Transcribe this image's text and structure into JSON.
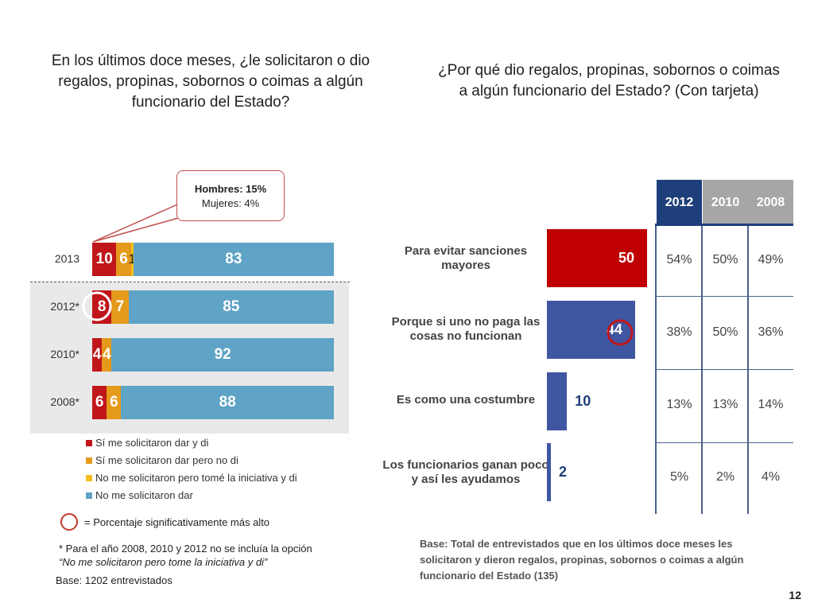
{
  "left_title": "En los últimos doce meses, ¿le solicitaron o dio regalos, propinas, sobornos o coimas a algún funcionario del Estado?",
  "right_title": "¿Por qué dio regalos, propinas, sobornos o coimas a algún funcionario del Estado? (Con tarjeta)",
  "callout": {
    "line1": "Hombres: 15%",
    "line2": "Mujeres: 4%"
  },
  "colors": {
    "dark_red": "#c0161b",
    "orange": "#e59a1c",
    "yellow": "#f4c020",
    "teal": "#5fa3c6",
    "navy": "#1f3f7a",
    "grey": "#a6a6a6",
    "red_bar": "#c00000",
    "blue_bar": "#3f56a0"
  },
  "chart_data": [
    {
      "type": "bar",
      "stacked": true,
      "orientation": "horizontal",
      "categories": [
        "2013",
        "2012*",
        "2010*",
        "2008*"
      ],
      "series": [
        {
          "name": "Sí me solicitaron dar y di",
          "values": [
            10,
            8,
            4,
            6
          ]
        },
        {
          "name": "Sí me solicitaron dar pero no di",
          "values": [
            6,
            7,
            4,
            6
          ]
        },
        {
          "name": "No me solicitaron pero tomé la iniciativa y di",
          "values": [
            1,
            null,
            null,
            null
          ]
        },
        {
          "name": "No me solicitaron dar",
          "values": [
            83,
            85,
            92,
            88
          ]
        }
      ],
      "labels": [
        [
          "10",
          "6",
          "1",
          "83"
        ],
        [
          "8",
          "7",
          "",
          "85"
        ],
        [
          "4",
          "4",
          "",
          "92"
        ],
        [
          "6",
          "6",
          "",
          "88"
        ]
      ],
      "significant_marker": {
        "category": "2012*",
        "series": "Sí me solicitaron dar y di"
      }
    },
    {
      "type": "bar",
      "orientation": "horizontal",
      "categories": [
        "Para evitar sanciones mayores",
        "Porque si uno no paga las cosas no funcionan",
        "Es como una costumbre",
        "Los funcionarios ganan poco y así les ayudamos"
      ],
      "values": [
        50,
        44,
        10,
        2
      ],
      "value_labels": [
        "50",
        "44",
        "10",
        "2"
      ],
      "significant_marker": {
        "category": "Porque si uno no paga las cosas no funcionan"
      }
    },
    {
      "type": "table",
      "columns": [
        "2012",
        "2010",
        "2008"
      ],
      "rows": [
        [
          "54%",
          "50%",
          "49%"
        ],
        [
          "38%",
          "50%",
          "36%"
        ],
        [
          "13%",
          "13%",
          "14%"
        ],
        [
          "5%",
          "2%",
          "4%"
        ]
      ]
    }
  ],
  "legend_sig": "= Porcentaje significativamente más alto",
  "notes": {
    "n1": "* Para el año 2008, 2010 y 2012 no se incluía la opción",
    "n2": "“No me solicitaron pero tome la iniciativa y di”",
    "n3": "Base: 1202 entrevistados"
  },
  "base_right": "Base: Total de entrevistados  que en los últimos doce meses les solicitaron y dieron regalos, propinas, sobornos o coimas a algún funcionario del Estado (135)",
  "page_number": "12"
}
